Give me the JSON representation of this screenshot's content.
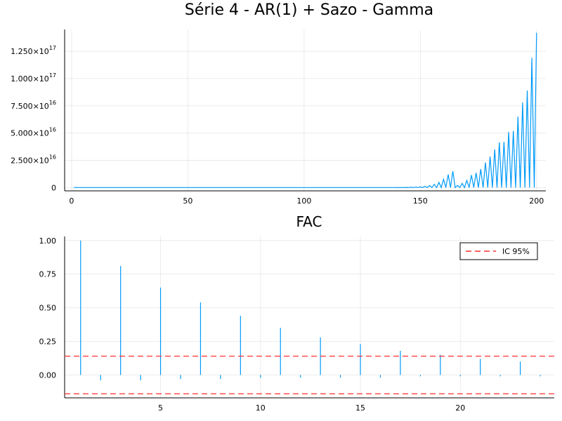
{
  "chart_data": [
    {
      "type": "line",
      "title": "Série 4 - AR(1) + Sazo - Gamma",
      "xlabel": "",
      "ylabel": "",
      "xlim": [
        -3,
        204
      ],
      "ylim": [
        -3000000000000000.0,
        1.45e+17
      ],
      "grid": true,
      "legend": "none",
      "x_ticks": [
        0,
        50,
        100,
        150,
        200
      ],
      "y_ticks": [
        {
          "value": 0,
          "mantissa": "0",
          "exponent": ""
        },
        {
          "value": 2.5e+16,
          "mantissa": "2.500×10",
          "exponent": "16"
        },
        {
          "value": 5e+16,
          "mantissa": "5.000×10",
          "exponent": "16"
        },
        {
          "value": 7.5e+16,
          "mantissa": "7.500×10",
          "exponent": "16"
        },
        {
          "value": 1e+17,
          "mantissa": "1.000×10",
          "exponent": "17"
        },
        {
          "value": 1.25e+17,
          "mantissa": "1.250×10",
          "exponent": "17"
        }
      ],
      "series": [
        {
          "color": "#009AFA",
          "description": "t = 1..200; values ~0 until t≈135, then alternating high/low seasonal peaks growing exponentially",
          "x": [
            1,
            136,
            138,
            140,
            142,
            144,
            146,
            148,
            150,
            152,
            154,
            156,
            158,
            160,
            162,
            164,
            166,
            168,
            170,
            172,
            174,
            176,
            178,
            180,
            182,
            184,
            186,
            188,
            190,
            192,
            194,
            196,
            198,
            200
          ],
          "peaks": [
            0,
            20000000000000.0,
            40000000000000.0,
            70000000000000.0,
            110000000000000.0,
            180000000000000.0,
            290000000000000.0,
            460000000000000.0,
            740000000000000.0,
            1200000000000000.0,
            1900000000000000.0,
            3000000000000000.0,
            4800000000000000.0,
            7600000000000000.0,
            1.2e+16,
            1.5e+16,
            2000000000000000.0,
            3800000000000000.0,
            6500000000000000.0,
            1.15e+16,
            1.35e+16,
            1.7e+16,
            2.3e+16,
            2.85e+16,
            3.5e+16,
            4.15e+16,
            4.2e+16,
            5.1e+16,
            5.2e+16,
            6.5e+16,
            7.8e+16,
            8.9e+16,
            1.19e+17,
            1.42e+17
          ],
          "troughs_note": "odd time steps drop back to ~0"
        }
      ]
    },
    {
      "type": "bar",
      "title": "FAC",
      "xlabel": "",
      "ylabel": "",
      "xlim": [
        0.2,
        24.7
      ],
      "ylim": [
        -0.17,
        1.03
      ],
      "grid": true,
      "legend": "top-right",
      "x_ticks": [
        5,
        10,
        15,
        20
      ],
      "y_ticks": [
        0.0,
        0.25,
        0.5,
        0.75,
        1.0
      ],
      "y_tick_labels": [
        "0.00",
        "0.25",
        "0.50",
        "0.75",
        "1.00"
      ],
      "categories": [
        1,
        2,
        3,
        4,
        5,
        6,
        7,
        8,
        9,
        10,
        11,
        12,
        13,
        14,
        15,
        16,
        17,
        18,
        19,
        20,
        21,
        22,
        23,
        24
      ],
      "series": [
        {
          "name": "",
          "color": "#009AFA",
          "values": [
            1.0,
            -0.04,
            0.81,
            -0.04,
            0.65,
            -0.03,
            0.54,
            -0.03,
            0.44,
            -0.02,
            0.35,
            -0.02,
            0.28,
            -0.02,
            0.23,
            -0.02,
            0.18,
            -0.01,
            0.15,
            -0.01,
            0.12,
            -0.01,
            0.1,
            -0.01
          ]
        }
      ],
      "ci": {
        "name": "IC 95%",
        "upper": 0.14,
        "lower": -0.14,
        "color": "#FF3030",
        "style": "dashed"
      }
    }
  ]
}
